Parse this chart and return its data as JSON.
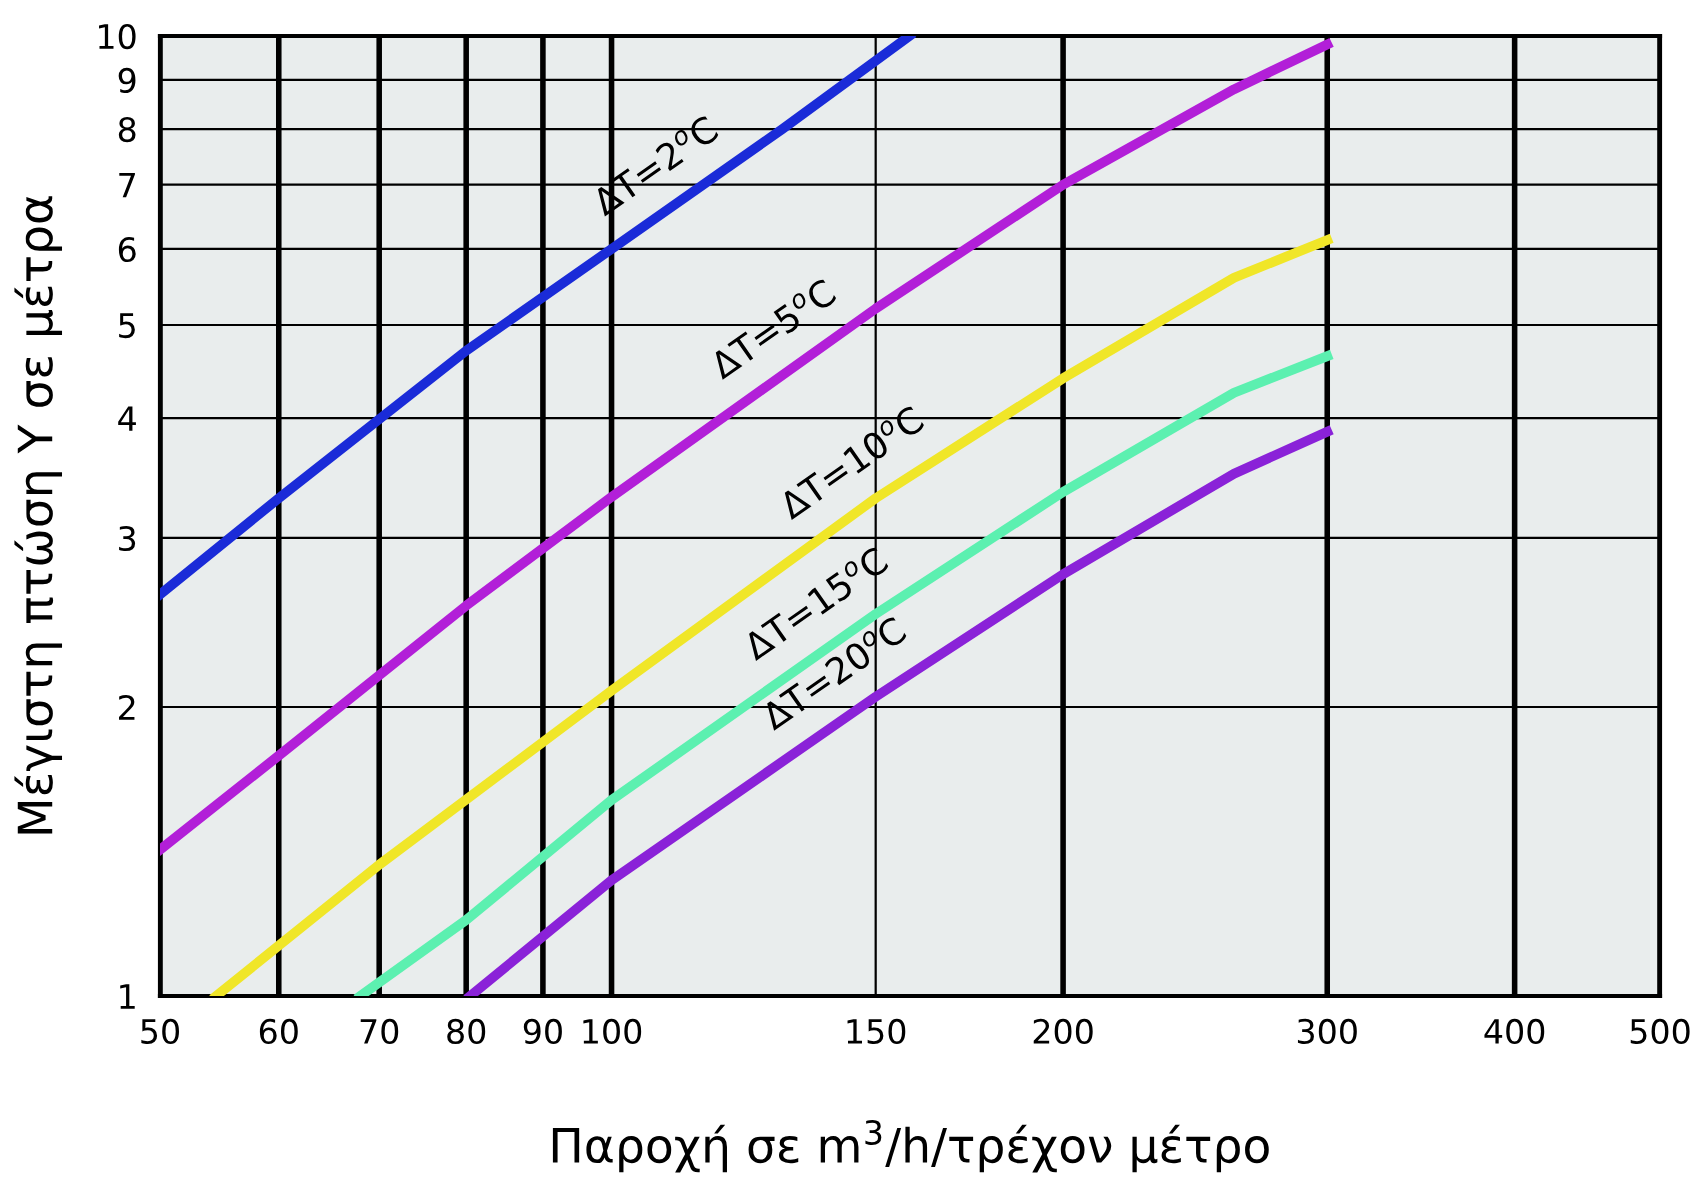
{
  "chart_data": {
    "type": "line",
    "xlabel": "Παροχή σε m$^{3}$/h/τρέχον μέτρο",
    "ylabel": "Μέγιστη πτώση Υ σε μέτρα",
    "log": "xy",
    "grid": true,
    "legend": false,
    "marker": "none",
    "line_style": "solid",
    "xlim": [
      50,
      500
    ],
    "ylim": [
      1,
      10
    ],
    "xticks": [
      50,
      60,
      70,
      80,
      90,
      100,
      150,
      200,
      300,
      400,
      500
    ],
    "yticks": [
      1,
      2,
      3,
      4,
      5,
      6,
      7,
      8,
      9,
      10
    ],
    "series": [
      {
        "name": "ΔT=2$^{o}$C",
        "color": "#1a2bd8",
        "x": [
          50,
          60,
          80,
          100,
          130,
          158
        ],
        "values": [
          2.62,
          3.3,
          4.7,
          6.0,
          8.0,
          10
        ]
      },
      {
        "name": "ΔT=5$^{o}$C",
        "color": "#b21fd8",
        "x": [
          50,
          60,
          80,
          100,
          150,
          200,
          260,
          300
        ],
        "values": [
          1.42,
          1.78,
          2.55,
          3.31,
          5.2,
          7.0,
          8.8,
          9.8
        ]
      },
      {
        "name": "ΔT=10$^{o}$C",
        "color": "#f0e628",
        "x": [
          54.5,
          70,
          100,
          150,
          200,
          260,
          300
        ],
        "values": [
          1,
          1.37,
          2.08,
          3.3,
          4.4,
          5.6,
          6.13
        ]
      },
      {
        "name": "ΔT=15$^{o}$C",
        "color": "#5cf0b0",
        "x": [
          68,
          80,
          100,
          150,
          200,
          260,
          300
        ],
        "values": [
          1,
          1.2,
          1.6,
          2.5,
          3.35,
          4.25,
          4.64
        ]
      },
      {
        "name": "ΔT=20$^{o}$C",
        "color": "#8a22d8",
        "x": [
          80.5,
          100,
          150,
          200,
          260,
          300
        ],
        "values": [
          1,
          1.32,
          2.05,
          2.75,
          3.5,
          3.87
        ]
      }
    ]
  }
}
